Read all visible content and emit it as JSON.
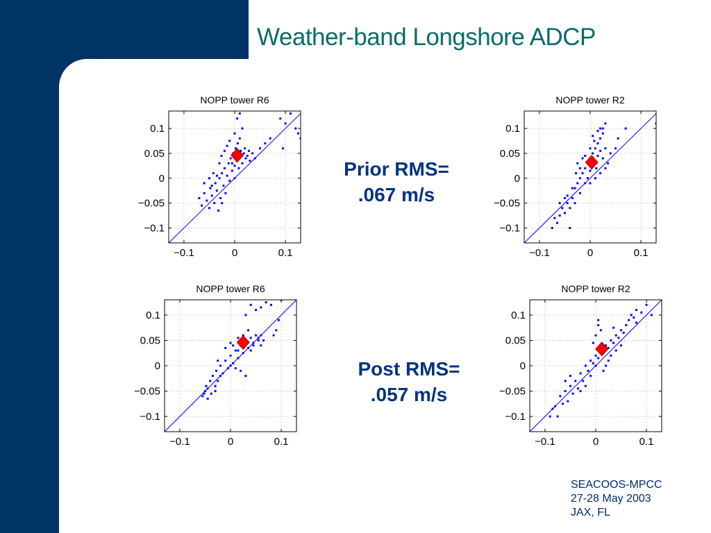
{
  "slide": {
    "title": "Weather-band Longshore ADCP",
    "prior_rms": {
      "line1": "Prior RMS=",
      "line2": ".067 m/s"
    },
    "post_rms": {
      "line1": "Post RMS=",
      "line2": ".057 m/s"
    },
    "footer": [
      "SEACOOS-MPCC",
      "27-28 May 2003",
      "JAX, FL"
    ],
    "colors": {
      "sidebar": "#003366",
      "title": "#0a6b6b",
      "rms_text": "#003380",
      "points": "#0000ff",
      "mean_marker": "#ff0000"
    }
  },
  "chart_data": [
    {
      "id": "prior-r6",
      "type": "scatter",
      "title": "NOPP tower R6",
      "xlim": [
        -0.13,
        0.13
      ],
      "ylim": [
        -0.13,
        0.135
      ],
      "xticks": [
        -0.1,
        0,
        0.1
      ],
      "xticklabels": [
        "−0.1",
        "0",
        "0.1"
      ],
      "yticks": [
        -0.1,
        -0.05,
        0,
        0.05,
        0.1
      ],
      "yticklabels": [
        "−0.1",
        "−0.05",
        "0",
        "0.05",
        "0.1"
      ],
      "grid": true,
      "reference_line": "y=x",
      "mean": [
        0.005,
        0.046
      ],
      "points": [
        [
          -0.07,
          -0.04
        ],
        [
          -0.065,
          -0.055
        ],
        [
          -0.06,
          -0.03
        ],
        [
          -0.055,
          -0.045
        ],
        [
          -0.05,
          -0.06
        ],
        [
          -0.048,
          -0.02
        ],
        [
          -0.045,
          -0.035
        ],
        [
          -0.04,
          -0.05
        ],
        [
          -0.038,
          -0.01
        ],
        [
          -0.035,
          -0.025
        ],
        [
          -0.032,
          -0.065
        ],
        [
          -0.03,
          0.0
        ],
        [
          -0.028,
          -0.04
        ],
        [
          -0.025,
          0.01
        ],
        [
          -0.022,
          -0.015
        ],
        [
          -0.02,
          0.02
        ],
        [
          -0.018,
          -0.03
        ],
        [
          -0.015,
          0.005
        ],
        [
          -0.012,
          0.03
        ],
        [
          -0.01,
          -0.005
        ],
        [
          -0.008,
          0.04
        ],
        [
          -0.005,
          0.015
        ],
        [
          -0.003,
          0.05
        ],
        [
          0.0,
          0.025
        ],
        [
          0.002,
          0.06
        ],
        [
          0.004,
          0.035
        ],
        [
          0.006,
          0.07
        ],
        [
          0.008,
          0.045
        ],
        [
          0.01,
          0.08
        ],
        [
          0.012,
          0.055
        ],
        [
          0.015,
          0.03
        ],
        [
          0.018,
          0.05
        ],
        [
          0.02,
          0.06
        ],
        [
          0.022,
          0.04
        ],
        [
          0.025,
          0.045
        ],
        [
          -0.03,
          0.03
        ],
        [
          -0.026,
          0.045
        ],
        [
          -0.02,
          0.055
        ],
        [
          -0.015,
          0.065
        ],
        [
          -0.01,
          0.075
        ],
        [
          0.0,
          0.09
        ],
        [
          0.005,
          0.12
        ],
        [
          0.01,
          0.13
        ],
        [
          0.015,
          0.1
        ],
        [
          -0.06,
          -0.01
        ],
        [
          -0.05,
          0.0
        ],
        [
          -0.042,
          0.01
        ],
        [
          0.035,
          0.05
        ],
        [
          0.04,
          0.04
        ],
        [
          0.05,
          0.06
        ],
        [
          0.06,
          0.07
        ],
        [
          0.07,
          0.08
        ],
        [
          0.09,
          0.12
        ],
        [
          0.1,
          0.11
        ],
        [
          0.12,
          0.1
        ],
        [
          0.125,
          0.09
        ],
        [
          0.13,
          0.08
        ],
        [
          0.095,
          0.06
        ],
        [
          0.11,
          0.13
        ],
        [
          -0.025,
          -0.05
        ],
        [
          -0.035,
          0.005
        ],
        [
          -0.045,
          -0.015
        ],
        [
          0.0,
          0.0
        ],
        [
          0.03,
          0.035
        ],
        [
          -0.005,
          0.03
        ],
        [
          0.008,
          0.02
        ],
        [
          0.028,
          0.055
        ]
      ]
    },
    {
      "id": "prior-r2",
      "type": "scatter",
      "title": "NOPP tower R2",
      "xlim": [
        -0.13,
        0.13
      ],
      "ylim": [
        -0.13,
        0.135
      ],
      "xticks": [
        -0.1,
        0,
        0.1
      ],
      "xticklabels": [
        "−0.1",
        "0",
        "0.1"
      ],
      "yticks": [
        -0.1,
        -0.05,
        0,
        0.05,
        0.1
      ],
      "yticklabels": [
        "−0.1",
        "−0.05",
        "0",
        "0.05",
        "0.1"
      ],
      "grid": true,
      "reference_line": "y=x",
      "mean": [
        0.003,
        0.032
      ],
      "points": [
        [
          -0.075,
          -0.1
        ],
        [
          -0.07,
          -0.08
        ],
        [
          -0.065,
          -0.09
        ],
        [
          -0.06,
          -0.075
        ],
        [
          -0.055,
          -0.06
        ],
        [
          -0.05,
          -0.07
        ],
        [
          -0.045,
          -0.05
        ],
        [
          -0.04,
          -0.06
        ],
        [
          -0.04,
          -0.1
        ],
        [
          -0.035,
          -0.04
        ],
        [
          -0.03,
          -0.02
        ],
        [
          -0.03,
          -0.05
        ],
        [
          -0.025,
          -0.01
        ],
        [
          -0.02,
          0.0
        ],
        [
          -0.02,
          -0.03
        ],
        [
          -0.015,
          0.01
        ],
        [
          -0.01,
          0.02
        ],
        [
          -0.01,
          -0.01
        ],
        [
          -0.005,
          0.03
        ],
        [
          0.0,
          0.015
        ],
        [
          0.0,
          0.04
        ],
        [
          0.005,
          0.05
        ],
        [
          0.005,
          0.025
        ],
        [
          0.01,
          0.06
        ],
        [
          0.01,
          0.035
        ],
        [
          0.015,
          0.07
        ],
        [
          0.015,
          0.045
        ],
        [
          0.02,
          0.08
        ],
        [
          0.02,
          0.055
        ],
        [
          0.025,
          0.09
        ],
        [
          0.025,
          0.1
        ],
        [
          0.03,
          0.11
        ],
        [
          0.03,
          0.06
        ],
        [
          -0.02,
          0.02
        ],
        [
          -0.025,
          0.03
        ],
        [
          -0.015,
          0.04
        ],
        [
          -0.005,
          0.0
        ],
        [
          0.0,
          -0.01
        ],
        [
          0.01,
          0.0
        ],
        [
          0.02,
          0.01
        ],
        [
          0.03,
          0.02
        ],
        [
          0.035,
          0.03
        ],
        [
          0.04,
          0.05
        ],
        [
          0.05,
          0.06
        ],
        [
          0.055,
          0.08
        ],
        [
          0.07,
          0.1
        ],
        [
          0.13,
          0.11
        ],
        [
          -0.045,
          -0.035
        ],
        [
          -0.035,
          -0.02
        ],
        [
          -0.05,
          -0.04
        ],
        [
          -0.06,
          -0.05
        ],
        [
          0.005,
          0.085
        ],
        [
          0.02,
          0.1
        ],
        [
          0.015,
          0.095
        ],
        [
          -0.01,
          0.045
        ],
        [
          0.0,
          0.06
        ],
        [
          0.008,
          0.075
        ],
        [
          0.025,
          0.04
        ],
        [
          -0.028,
          0.01
        ],
        [
          0.012,
          0.02
        ]
      ]
    },
    {
      "id": "post-r6",
      "type": "scatter",
      "title": "NOPP tower R6",
      "xlim": [
        -0.13,
        0.13
      ],
      "ylim": [
        -0.13,
        0.13
      ],
      "xticks": [
        -0.1,
        0,
        0.1
      ],
      "xticklabels": [
        "−0.1",
        "0",
        "0.1"
      ],
      "yticks": [
        -0.1,
        -0.05,
        0,
        0.05,
        0.1
      ],
      "yticklabels": [
        "−0.1",
        "−0.05",
        "0",
        "0.05",
        "0.1"
      ],
      "grid": true,
      "reference_line": "y=x",
      "mean": [
        0.025,
        0.046
      ],
      "points": [
        [
          -0.055,
          -0.06
        ],
        [
          -0.05,
          -0.05
        ],
        [
          -0.048,
          -0.04
        ],
        [
          -0.045,
          -0.065
        ],
        [
          -0.04,
          -0.03
        ],
        [
          -0.038,
          -0.055
        ],
        [
          -0.035,
          -0.02
        ],
        [
          -0.03,
          -0.04
        ],
        [
          -0.028,
          -0.01
        ],
        [
          -0.025,
          -0.03
        ],
        [
          -0.02,
          0.0
        ],
        [
          -0.015,
          -0.015
        ],
        [
          -0.01,
          0.01
        ],
        [
          -0.005,
          -0.005
        ],
        [
          0.0,
          0.02
        ],
        [
          0.005,
          0.005
        ],
        [
          0.01,
          0.03
        ],
        [
          0.015,
          0.015
        ],
        [
          0.02,
          0.04
        ],
        [
          0.025,
          0.025
        ],
        [
          0.03,
          0.05
        ],
        [
          0.035,
          0.035
        ],
        [
          0.04,
          0.055
        ],
        [
          0.045,
          0.045
        ],
        [
          0.05,
          0.06
        ],
        [
          0.055,
          0.05
        ],
        [
          0.06,
          0.04
        ],
        [
          0.03,
          0.1
        ],
        [
          0.04,
          0.12
        ],
        [
          0.05,
          0.11
        ],
        [
          0.06,
          0.115
        ],
        [
          0.07,
          0.125
        ],
        [
          0.08,
          0.12
        ],
        [
          0.1,
          0.13
        ],
        [
          0.095,
          0.09
        ],
        [
          0.085,
          0.06
        ],
        [
          0.09,
          0.07
        ],
        [
          0.005,
          0.04
        ],
        [
          0.0,
          0.045
        ],
        [
          -0.01,
          0.035
        ],
        [
          0.02,
          -0.01
        ],
        [
          0.03,
          -0.02
        ],
        [
          0.01,
          -0.005
        ],
        [
          -0.03,
          -0.05
        ],
        [
          -0.045,
          -0.045
        ],
        [
          -0.052,
          -0.055
        ],
        [
          0.015,
          0.055
        ],
        [
          0.025,
          0.06
        ],
        [
          0.035,
          0.07
        ],
        [
          0.045,
          0.04
        ],
        [
          0.055,
          0.055
        ],
        [
          0.06,
          0.06
        ],
        [
          0.065,
          0.05
        ],
        [
          -0.02,
          -0.02
        ],
        [
          -0.025,
          0.01
        ],
        [
          0.0,
          0.0
        ],
        [
          0.04,
          0.03
        ],
        [
          0.015,
          0.03
        ]
      ]
    },
    {
      "id": "post-r2",
      "type": "scatter",
      "title": "NOPP tower R2",
      "xlim": [
        -0.13,
        0.13
      ],
      "ylim": [
        -0.13,
        0.13
      ],
      "xticks": [
        -0.1,
        0,
        0.1
      ],
      "xticklabels": [
        "−0.1",
        "0",
        "0.1"
      ],
      "yticks": [
        -0.1,
        -0.05,
        0,
        0.05,
        0.1
      ],
      "yticklabels": [
        "−0.1",
        "−0.05",
        "0",
        "0.05",
        "0.1"
      ],
      "grid": true,
      "reference_line": "y=x",
      "mean": [
        0.012,
        0.033
      ],
      "points": [
        [
          -0.09,
          -0.1
        ],
        [
          -0.08,
          -0.08
        ],
        [
          -0.075,
          -0.1
        ],
        [
          -0.07,
          -0.06
        ],
        [
          -0.065,
          -0.075
        ],
        [
          -0.06,
          -0.05
        ],
        [
          -0.055,
          -0.07
        ],
        [
          -0.05,
          -0.04
        ],
        [
          -0.045,
          -0.055
        ],
        [
          -0.04,
          -0.03
        ],
        [
          -0.035,
          -0.045
        ],
        [
          -0.03,
          -0.015
        ],
        [
          -0.025,
          -0.03
        ],
        [
          -0.02,
          0.0
        ],
        [
          -0.015,
          -0.01
        ],
        [
          -0.01,
          0.01
        ],
        [
          -0.005,
          0.005
        ],
        [
          0.0,
          0.02
        ],
        [
          0.005,
          0.015
        ],
        [
          0.01,
          0.03
        ],
        [
          0.015,
          0.025
        ],
        [
          0.02,
          0.04
        ],
        [
          0.025,
          0.035
        ],
        [
          0.03,
          0.05
        ],
        [
          0.035,
          0.045
        ],
        [
          0.04,
          0.06
        ],
        [
          0.045,
          0.055
        ],
        [
          0.05,
          0.07
        ],
        [
          0.055,
          0.065
        ],
        [
          0.06,
          0.08
        ],
        [
          0.065,
          0.09
        ],
        [
          0.07,
          0.1
        ],
        [
          0.075,
          0.095
        ],
        [
          0.08,
          0.11
        ],
        [
          0.09,
          0.105
        ],
        [
          0.1,
          0.12
        ],
        [
          0.11,
          0.1
        ],
        [
          0.08,
          0.085
        ],
        [
          0.0,
          0.06
        ],
        [
          0.005,
          0.08
        ],
        [
          0.01,
          0.07
        ],
        [
          -0.005,
          0.045
        ],
        [
          0.02,
          0.0
        ],
        [
          0.015,
          -0.01
        ],
        [
          0.025,
          0.01
        ],
        [
          -0.02,
          -0.04
        ],
        [
          -0.03,
          -0.05
        ],
        [
          -0.05,
          -0.02
        ],
        [
          -0.06,
          -0.03
        ],
        [
          -0.085,
          -0.085
        ],
        [
          0.03,
          0.02
        ],
        [
          0.04,
          0.03
        ],
        [
          0.05,
          0.04
        ],
        [
          -0.01,
          -0.02
        ],
        [
          0.0,
          0.0
        ],
        [
          0.005,
          0.09
        ],
        [
          0.035,
          0.075
        ]
      ]
    }
  ]
}
